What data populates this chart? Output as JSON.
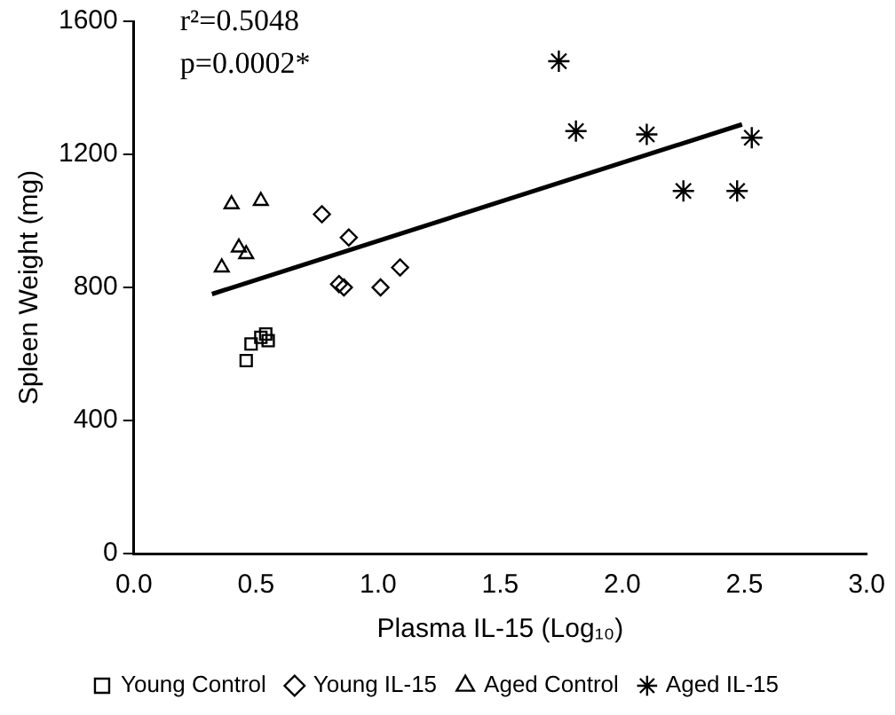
{
  "chart_data": {
    "type": "scatter",
    "xlabel": "Plasma IL-15 (Log₁₀)",
    "ylabel": "Spleen Weight (mg)",
    "xlim": [
      0,
      3
    ],
    "xticks": [
      {
        "value": 0,
        "label": "0.0"
      },
      0.5,
      {
        "value": 1,
        "label": "1.0"
      },
      1.5,
      {
        "value": 2,
        "label": "2.0"
      },
      2.5,
      {
        "value": 3,
        "label": "3.0"
      }
    ],
    "ylim": [
      0,
      1600
    ],
    "yticks": [
      0,
      400,
      800,
      1200,
      1600
    ],
    "grid": false,
    "legend": "bottom",
    "annotations": [
      "r²=0.5048",
      "p=0.0002*"
    ],
    "series": [
      {
        "name": "Young Control",
        "color": "#000000",
        "marker": "square",
        "x": [
          0.46,
          0.48,
          0.52,
          0.54,
          0.55
        ],
        "values": [
          580,
          630,
          650,
          660,
          640
        ]
      },
      {
        "name": "Young IL-15",
        "color": "#000000",
        "marker": "diamond",
        "x": [
          0.77,
          0.88,
          0.84,
          0.86,
          1.01,
          1.09
        ],
        "values": [
          1020,
          950,
          810,
          800,
          800,
          860
        ]
      },
      {
        "name": "Aged Control",
        "color": "#000000",
        "marker": "triangle",
        "x": [
          0.4,
          0.52,
          0.43,
          0.46,
          0.36
        ],
        "values": [
          1050,
          1060,
          920,
          900,
          860
        ]
      },
      {
        "name": "Aged IL-15",
        "color": "#000000",
        "marker": "cross",
        "x": [
          1.74,
          1.81,
          2.1,
          2.25,
          2.47,
          2.53
        ],
        "values": [
          1480,
          1270,
          1260,
          1090,
          1090,
          1250
        ]
      },
      {
        "type": "line",
        "color": "#000000",
        "marker": "none",
        "x": [
          0.32,
          2.49
        ],
        "values": [
          780,
          1290
        ]
      }
    ]
  }
}
